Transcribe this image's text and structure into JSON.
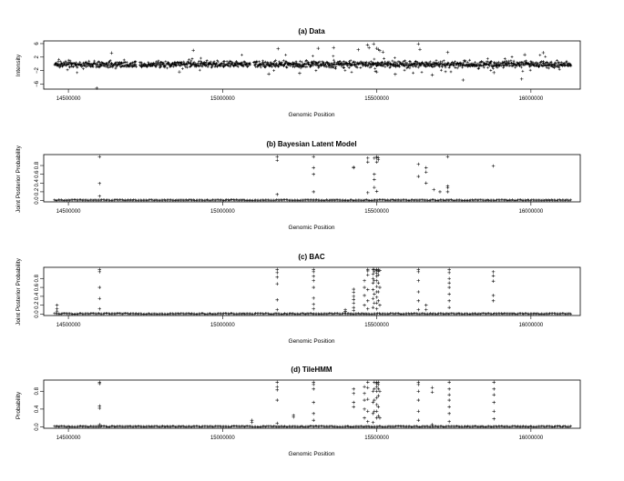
{
  "chart_data": [
    {
      "type": "scatter",
      "title": "(a) Data",
      "xlabel": "Genomic Position",
      "ylabel": "Intensity",
      "xlim": [
        14420000,
        16160000
      ],
      "ylim": [
        -7.5,
        6.8
      ],
      "xticks": [
        14500000,
        15000000,
        15500000,
        16000000
      ],
      "yticks": [
        -6,
        -2,
        2,
        6
      ],
      "xtick_labels": [
        "14500000",
        "15000000",
        "15500000",
        "16000000"
      ],
      "ytick_labels": [
        "−6",
        "−2",
        "2",
        "6"
      ],
      "marker": "+",
      "segments": [
        [
          14455000,
          14720000
        ],
        [
          14730000,
          15090000
        ],
        [
          15100000,
          15930000
        ],
        [
          15935000,
          16130000
        ]
      ],
      "band": [
        -1.6,
        1.3
      ],
      "sample_step": 3500,
      "outliers": [
        [
          14592000,
          -7.2
        ],
        [
          14905000,
          4.0
        ],
        [
          14640000,
          3.2
        ],
        [
          14860000,
          -2.4
        ],
        [
          15180000,
          4.5
        ],
        [
          15150000,
          -3.0
        ],
        [
          15310000,
          4.6
        ],
        [
          15360000,
          4.8
        ],
        [
          15440000,
          4.2
        ],
        [
          15470000,
          5.6
        ],
        [
          15475000,
          4.8
        ],
        [
          15490000,
          5.9
        ],
        [
          15500000,
          4.6
        ],
        [
          15505000,
          4.3
        ],
        [
          15510000,
          3.9
        ],
        [
          15520000,
          3.5
        ],
        [
          15635000,
          5.9
        ],
        [
          15640000,
          4.3
        ],
        [
          15560000,
          -3.1
        ],
        [
          15730000,
          3.4
        ],
        [
          15780000,
          -4.8
        ],
        [
          15880000,
          -2.6
        ],
        [
          15970000,
          -4.5
        ],
        [
          15980000,
          2.7
        ],
        [
          15500000,
          -2.4
        ],
        [
          15250000,
          -2.8
        ],
        [
          15680000,
          -3.3
        ],
        [
          16040000,
          3.3
        ]
      ]
    },
    {
      "type": "scatter",
      "title": "(b) Bayesian Latent Model",
      "xlabel": "Genomic Position",
      "ylabel": "Joint Posterior Probability",
      "xlim": [
        14420000,
        16160000
      ],
      "ylim": [
        -0.03,
        1.05
      ],
      "xticks": [
        14500000,
        15000000,
        15500000,
        16000000
      ],
      "yticks": [
        0.0,
        0.2,
        0.4,
        0.6,
        0.8
      ],
      "xtick_labels": [
        "14500000",
        "15000000",
        "15500000",
        "16000000"
      ],
      "ytick_labels": [
        "0.0",
        "0.2",
        "0.4",
        "0.6",
        "0.8"
      ],
      "marker": "+",
      "baseline": [
        14455000,
        16130000
      ],
      "points": [
        [
          14601000,
          1.0
        ],
        [
          14601000,
          0.39
        ],
        [
          14601000,
          0.1
        ],
        [
          15177000,
          1.0
        ],
        [
          15177000,
          0.92
        ],
        [
          15177000,
          0.14
        ],
        [
          15295000,
          1.0
        ],
        [
          15295000,
          0.75
        ],
        [
          15295000,
          0.6
        ],
        [
          15295000,
          0.2
        ],
        [
          15425000,
          0.76
        ],
        [
          15425000,
          0.75
        ],
        [
          15471000,
          0.97
        ],
        [
          15471000,
          0.88
        ],
        [
          15471000,
          0.18
        ],
        [
          15492000,
          0.97
        ],
        [
          15492000,
          0.6
        ],
        [
          15492000,
          0.48
        ],
        [
          15492000,
          0.3
        ],
        [
          15500000,
          1.0
        ],
        [
          15500000,
          0.97
        ],
        [
          15500000,
          0.88
        ],
        [
          15500000,
          0.21
        ],
        [
          15505000,
          0.98
        ],
        [
          15505000,
          0.93
        ],
        [
          15635000,
          0.83
        ],
        [
          15635000,
          0.55
        ],
        [
          15660000,
          0.75
        ],
        [
          15660000,
          0.65
        ],
        [
          15660000,
          0.4
        ],
        [
          15685000,
          0.25
        ],
        [
          15705000,
          0.2
        ],
        [
          15730000,
          1.0
        ],
        [
          15730000,
          0.33
        ],
        [
          15730000,
          0.29
        ],
        [
          15730000,
          0.2
        ],
        [
          15878000,
          0.79
        ]
      ]
    },
    {
      "type": "scatter",
      "title": "(c) BAC",
      "xlabel": "Genomic Position",
      "ylabel": "Joint Posterior Probability",
      "xlim": [
        14420000,
        16160000
      ],
      "ylim": [
        -0.03,
        1.05
      ],
      "xticks": [
        14500000,
        15000000,
        15500000,
        16000000
      ],
      "yticks": [
        0.0,
        0.2,
        0.4,
        0.6,
        0.8
      ],
      "xtick_labels": [
        "14500000",
        "15000000",
        "15500000",
        "16000000"
      ],
      "ytick_labels": [
        "0.0",
        "0.2",
        "0.4",
        "0.6",
        "0.8"
      ],
      "marker": "+",
      "baseline": [
        14455000,
        16130000
      ],
      "points": [
        [
          14463000,
          0.2
        ],
        [
          14463000,
          0.12
        ],
        [
          14463000,
          0.07
        ],
        [
          14601000,
          1.0
        ],
        [
          14601000,
          0.95
        ],
        [
          14601000,
          0.6
        ],
        [
          14601000,
          0.35
        ],
        [
          14601000,
          0.12
        ],
        [
          15177000,
          1.0
        ],
        [
          15177000,
          0.93
        ],
        [
          15177000,
          0.83
        ],
        [
          15177000,
          0.68
        ],
        [
          15177000,
          0.32
        ],
        [
          15177000,
          0.1
        ],
        [
          15295000,
          1.0
        ],
        [
          15295000,
          0.95
        ],
        [
          15295000,
          0.85
        ],
        [
          15295000,
          0.75
        ],
        [
          15295000,
          0.6
        ],
        [
          15295000,
          0.36
        ],
        [
          15295000,
          0.22
        ],
        [
          15295000,
          0.12
        ],
        [
          15398000,
          0.1
        ],
        [
          15398000,
          0.06
        ],
        [
          15425000,
          0.56
        ],
        [
          15425000,
          0.49
        ],
        [
          15425000,
          0.4
        ],
        [
          15425000,
          0.33
        ],
        [
          15425000,
          0.25
        ],
        [
          15425000,
          0.15
        ],
        [
          15425000,
          0.08
        ],
        [
          15460000,
          0.75
        ],
        [
          15460000,
          0.6
        ],
        [
          15460000,
          0.42
        ],
        [
          15460000,
          0.2
        ],
        [
          15471000,
          1.0
        ],
        [
          15471000,
          0.97
        ],
        [
          15471000,
          0.88
        ],
        [
          15471000,
          0.55
        ],
        [
          15471000,
          0.3
        ],
        [
          15471000,
          0.12
        ],
        [
          15488000,
          1.0
        ],
        [
          15488000,
          0.9
        ],
        [
          15488000,
          0.8
        ],
        [
          15488000,
          0.7
        ],
        [
          15488000,
          0.55
        ],
        [
          15488000,
          0.35
        ],
        [
          15488000,
          0.15
        ],
        [
          15492000,
          1.0
        ],
        [
          15492000,
          0.95
        ],
        [
          15492000,
          0.75
        ],
        [
          15492000,
          0.45
        ],
        [
          15492000,
          0.25
        ],
        [
          15500000,
          1.0
        ],
        [
          15500000,
          0.98
        ],
        [
          15500000,
          0.92
        ],
        [
          15500000,
          0.85
        ],
        [
          15500000,
          0.75
        ],
        [
          15500000,
          0.62
        ],
        [
          15500000,
          0.5
        ],
        [
          15500000,
          0.38
        ],
        [
          15500000,
          0.25
        ],
        [
          15500000,
          0.12
        ],
        [
          15505000,
          1.0
        ],
        [
          15505000,
          0.96
        ],
        [
          15505000,
          0.88
        ],
        [
          15505000,
          0.7
        ],
        [
          15505000,
          0.5
        ],
        [
          15505000,
          0.3
        ],
        [
          15510000,
          0.98
        ],
        [
          15510000,
          0.6
        ],
        [
          15510000,
          0.2
        ],
        [
          15635000,
          1.0
        ],
        [
          15635000,
          0.95
        ],
        [
          15635000,
          0.75
        ],
        [
          15635000,
          0.5
        ],
        [
          15635000,
          0.3
        ],
        [
          15635000,
          0.1
        ],
        [
          15660000,
          0.2
        ],
        [
          15660000,
          0.1
        ],
        [
          15735000,
          1.0
        ],
        [
          15735000,
          0.93
        ],
        [
          15735000,
          0.8
        ],
        [
          15735000,
          0.7
        ],
        [
          15735000,
          0.6
        ],
        [
          15735000,
          0.45
        ],
        [
          15735000,
          0.3
        ],
        [
          15735000,
          0.15
        ],
        [
          15878000,
          0.95
        ],
        [
          15878000,
          0.86
        ],
        [
          15878000,
          0.74
        ],
        [
          15878000,
          0.42
        ],
        [
          15878000,
          0.3
        ]
      ]
    },
    {
      "type": "scatter",
      "title": "(d) TileHMM",
      "xlabel": "Genomic Position",
      "ylabel": "Probability",
      "xlim": [
        14420000,
        16160000
      ],
      "ylim": [
        -0.03,
        1.05
      ],
      "xticks": [
        14500000,
        15000000,
        15500000,
        16000000
      ],
      "yticks": [
        0.0,
        0.4,
        0.8
      ],
      "xtick_labels": [
        "14500000",
        "15000000",
        "15500000",
        "16000000"
      ],
      "ytick_labels": [
        "0.0",
        "0.4",
        "0.8"
      ],
      "marker": "+",
      "baseline": [
        14455000,
        16130000
      ],
      "points": [
        [
          14601000,
          1.0
        ],
        [
          14601000,
          0.97
        ],
        [
          14601000,
          0.47
        ],
        [
          14601000,
          0.42
        ],
        [
          14601000,
          0.05
        ],
        [
          15095000,
          0.15
        ],
        [
          15095000,
          0.1
        ],
        [
          15177000,
          1.0
        ],
        [
          15177000,
          0.9
        ],
        [
          15177000,
          0.83
        ],
        [
          15177000,
          0.6
        ],
        [
          15177000,
          0.08
        ],
        [
          15230000,
          0.26
        ],
        [
          15230000,
          0.22
        ],
        [
          15295000,
          1.0
        ],
        [
          15295000,
          0.95
        ],
        [
          15295000,
          0.85
        ],
        [
          15295000,
          0.55
        ],
        [
          15295000,
          0.3
        ],
        [
          15295000,
          0.15
        ],
        [
          15425000,
          0.85
        ],
        [
          15425000,
          0.75
        ],
        [
          15425000,
          0.55
        ],
        [
          15425000,
          0.45
        ],
        [
          15460000,
          0.9
        ],
        [
          15460000,
          0.75
        ],
        [
          15460000,
          0.6
        ],
        [
          15460000,
          0.4
        ],
        [
          15460000,
          0.2
        ],
        [
          15471000,
          1.0
        ],
        [
          15471000,
          0.88
        ],
        [
          15471000,
          0.62
        ],
        [
          15471000,
          0.35
        ],
        [
          15471000,
          0.12
        ],
        [
          15488000,
          0.8
        ],
        [
          15488000,
          0.55
        ],
        [
          15488000,
          0.3
        ],
        [
          15488000,
          0.1
        ],
        [
          15492000,
          1.0
        ],
        [
          15492000,
          0.85
        ],
        [
          15492000,
          0.6
        ],
        [
          15492000,
          0.35
        ],
        [
          15500000,
          1.0
        ],
        [
          15500000,
          0.97
        ],
        [
          15500000,
          0.9
        ],
        [
          15500000,
          0.8
        ],
        [
          15500000,
          0.65
        ],
        [
          15500000,
          0.5
        ],
        [
          15500000,
          0.35
        ],
        [
          15500000,
          0.2
        ],
        [
          15505000,
          1.0
        ],
        [
          15505000,
          0.95
        ],
        [
          15505000,
          0.85
        ],
        [
          15505000,
          0.7
        ],
        [
          15505000,
          0.45
        ],
        [
          15505000,
          0.25
        ],
        [
          15510000,
          0.8
        ],
        [
          15510000,
          0.2
        ],
        [
          15635000,
          1.0
        ],
        [
          15635000,
          0.95
        ],
        [
          15635000,
          0.8
        ],
        [
          15635000,
          0.6
        ],
        [
          15635000,
          0.35
        ],
        [
          15635000,
          0.15
        ],
        [
          15680000,
          0.88
        ],
        [
          15680000,
          0.78
        ],
        [
          15680000,
          0.05
        ],
        [
          15735000,
          1.0
        ],
        [
          15735000,
          0.85
        ],
        [
          15735000,
          0.72
        ],
        [
          15735000,
          0.6
        ],
        [
          15735000,
          0.45
        ],
        [
          15735000,
          0.3
        ],
        [
          15735000,
          0.12
        ],
        [
          15880000,
          1.0
        ],
        [
          15880000,
          0.85
        ],
        [
          15880000,
          0.72
        ],
        [
          15880000,
          0.55
        ],
        [
          15880000,
          0.35
        ],
        [
          15880000,
          0.18
        ]
      ]
    }
  ]
}
